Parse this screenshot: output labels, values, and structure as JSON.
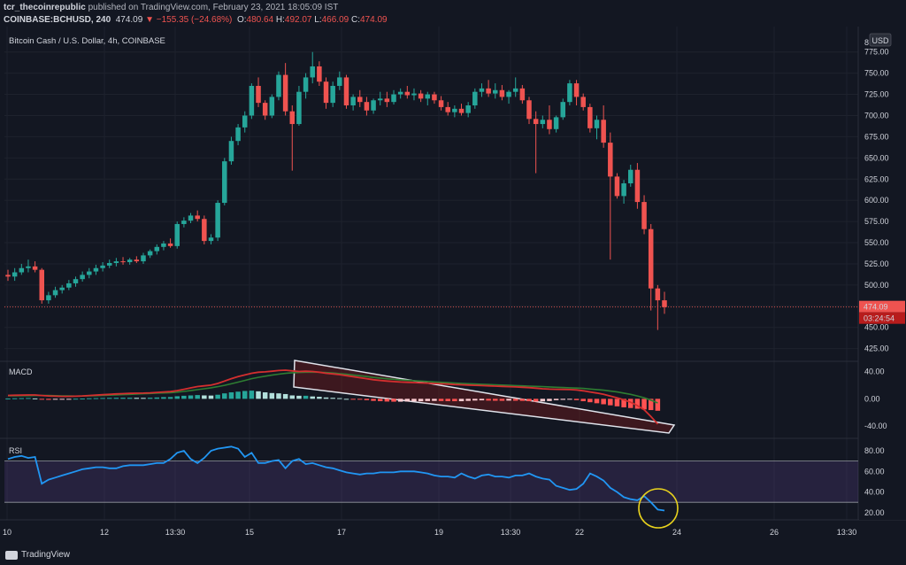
{
  "header": {
    "author": "tcr_thecoinrepublic",
    "published": "published on TradingView.com, February 23, 2021 18:05:09 IST",
    "symbol": "COINBASE:BCHUSD, 240",
    "price": "474.09",
    "change": "−155.35 (−24.68%)",
    "o_label": "O:",
    "o_val": "480.64",
    "h_label": "H:",
    "h_val": "492.07",
    "l_label": "L:",
    "l_val": "466.09",
    "c_label": "C:",
    "c_val": "474.09"
  },
  "panels": {
    "price_title": "Bitcoin Cash / U.S. Dollar, 4h, COINBASE",
    "macd_label": "MACD",
    "rsi_label": "RSI",
    "currency_badge": "USD",
    "last_price_tag": "474.09",
    "countdown_tag": "03:24:54"
  },
  "footer": {
    "brand": "TradingView"
  },
  "colors": {
    "up": "#26a69a",
    "down": "#ef5350",
    "rsi": "#2196f3",
    "macd": "#d32f2f",
    "signal": "#2e7d32",
    "rsi_band": "#7e57c2"
  },
  "chart_data": [
    {
      "type": "candlestick",
      "title": "Bitcoin Cash / U.S. Dollar, 4h, COINBASE",
      "x_ticks": [
        "10",
        "12",
        "13:30",
        "15",
        "17",
        "19",
        "13:30",
        "22",
        "24",
        "26",
        "13:30"
      ],
      "y_ticks": [
        425.0,
        450.0,
        475.0,
        500.0,
        525.0,
        550.0,
        575.0,
        600.0,
        625.0,
        650.0,
        675.0,
        700.0,
        725.0,
        750.0,
        775.0
      ],
      "ylim": [
        410,
        805
      ],
      "last_price": 474.09,
      "candles": [
        [
          512,
          518,
          505,
          510
        ],
        [
          510,
          520,
          505,
          515
        ],
        [
          515,
          525,
          512,
          520
        ],
        [
          520,
          530,
          515,
          522
        ],
        [
          522,
          528,
          515,
          518
        ],
        [
          518,
          520,
          478,
          482
        ],
        [
          482,
          492,
          478,
          488
        ],
        [
          488,
          498,
          485,
          494
        ],
        [
          494,
          500,
          490,
          497
        ],
        [
          497,
          506,
          494,
          502
        ],
        [
          502,
          510,
          498,
          507
        ],
        [
          507,
          516,
          504,
          512
        ],
        [
          512,
          520,
          508,
          516
        ],
        [
          516,
          524,
          512,
          520
        ],
        [
          520,
          527,
          516,
          523
        ],
        [
          523,
          530,
          520,
          526
        ],
        [
          526,
          532,
          522,
          528
        ],
        [
          528,
          533,
          524,
          527
        ],
        [
          527,
          532,
          524,
          530
        ],
        [
          530,
          534,
          526,
          528
        ],
        [
          528,
          538,
          525,
          535
        ],
        [
          535,
          542,
          532,
          540
        ],
        [
          540,
          548,
          536,
          545
        ],
        [
          545,
          552,
          541,
          549
        ],
        [
          549,
          555,
          544,
          546
        ],
        [
          546,
          575,
          543,
          572
        ],
        [
          572,
          580,
          568,
          576
        ],
        [
          576,
          585,
          573,
          582
        ],
        [
          582,
          588,
          575,
          578
        ],
        [
          578,
          582,
          548,
          552
        ],
        [
          552,
          560,
          548,
          556
        ],
        [
          556,
          600,
          552,
          597
        ],
        [
          597,
          650,
          594,
          646
        ],
        [
          646,
          675,
          642,
          670
        ],
        [
          670,
          690,
          665,
          686
        ],
        [
          686,
          705,
          680,
          700
        ],
        [
          700,
          738,
          696,
          735
        ],
        [
          735,
          745,
          710,
          715
        ],
        [
          715,
          718,
          695,
          700
        ],
        [
          700,
          725,
          697,
          722
        ],
        [
          722,
          752,
          718,
          748
        ],
        [
          748,
          762,
          700,
          705
        ],
        [
          705,
          712,
          635,
          690
        ],
        [
          690,
          735,
          688,
          728
        ],
        [
          728,
          750,
          720,
          745
        ],
        [
          745,
          775,
          738,
          758
        ],
        [
          758,
          764,
          735,
          740
        ],
        [
          740,
          745,
          708,
          715
        ],
        [
          715,
          740,
          710,
          735
        ],
        [
          735,
          752,
          730,
          745
        ],
        [
          745,
          748,
          708,
          712
        ],
        [
          712,
          725,
          706,
          722
        ],
        [
          722,
          730,
          710,
          716
        ],
        [
          716,
          722,
          700,
          706
        ],
        [
          706,
          720,
          702,
          718
        ],
        [
          718,
          728,
          712,
          720
        ],
        [
          720,
          728,
          710,
          716
        ],
        [
          716,
          730,
          713,
          725
        ],
        [
          725,
          732,
          720,
          728
        ],
        [
          728,
          735,
          720,
          724
        ],
        [
          724,
          732,
          718,
          726
        ],
        [
          726,
          730,
          716,
          720
        ],
        [
          720,
          728,
          712,
          725
        ],
        [
          725,
          728,
          714,
          718
        ],
        [
          718,
          723,
          706,
          710
        ],
        [
          710,
          716,
          700,
          704
        ],
        [
          704,
          712,
          698,
          708
        ],
        [
          708,
          714,
          700,
          703
        ],
        [
          703,
          716,
          698,
          712
        ],
        [
          712,
          732,
          708,
          728
        ],
        [
          728,
          738,
          722,
          732
        ],
        [
          732,
          742,
          722,
          726
        ],
        [
          726,
          738,
          720,
          730
        ],
        [
          730,
          736,
          718,
          722
        ],
        [
          722,
          730,
          714,
          728
        ],
        [
          728,
          745,
          722,
          732
        ],
        [
          732,
          736,
          714,
          718
        ],
        [
          718,
          722,
          690,
          696
        ],
        [
          696,
          705,
          632,
          690
        ],
        [
          690,
          700,
          685,
          695
        ],
        [
          695,
          712,
          678,
          684
        ],
        [
          684,
          700,
          680,
          698
        ],
        [
          698,
          720,
          695,
          716
        ],
        [
          716,
          742,
          712,
          738
        ],
        [
          738,
          742,
          712,
          722
        ],
        [
          722,
          726,
          706,
          710
        ],
        [
          710,
          714,
          680,
          685
        ],
        [
          685,
          700,
          672,
          695
        ],
        [
          695,
          712,
          662,
          668
        ],
        [
          668,
          680,
          530,
          628
        ],
        [
          628,
          632,
          602,
          605
        ],
        [
          605,
          624,
          596,
          620
        ],
        [
          620,
          642,
          616,
          636
        ],
        [
          636,
          644,
          590,
          598
        ],
        [
          598,
          606,
          560,
          566
        ],
        [
          566,
          572,
          470,
          496
        ],
        [
          496,
          500,
          447,
          482
        ],
        [
          482,
          492,
          466,
          474
        ]
      ]
    },
    {
      "type": "bar",
      "title": "MACD",
      "y_ticks": [
        40.0,
        0.0,
        -40.0
      ],
      "ylim": [
        -58,
        55
      ],
      "histogram": [
        0.5,
        0.8,
        1.0,
        1.2,
        0.6,
        -1.0,
        -1.5,
        -1.2,
        -0.8,
        -0.5,
        0.2,
        0.4,
        0.8,
        1.0,
        1.2,
        1.4,
        1.5,
        1.6,
        1.6,
        1.5,
        1.4,
        1.6,
        2.0,
        2.5,
        2.6,
        3.8,
        4.5,
        5.0,
        5.5,
        5.0,
        4.8,
        6.0,
        8.0,
        9.5,
        10.5,
        11.5,
        12.0,
        11.0,
        9.5,
        8.5,
        8.0,
        7.0,
        5.0,
        4.5,
        4.5,
        3.5,
        3.0,
        2.0,
        1.5,
        1.0,
        0.0,
        -0.5,
        -1.0,
        -2.0,
        -3.0,
        -3.5,
        -4.0,
        -4.2,
        -4.2,
        -4.0,
        -3.8,
        -3.6,
        -3.2,
        -3.0,
        -3.2,
        -3.4,
        -3.5,
        -3.5,
        -3.0,
        -2.5,
        -2.2,
        -2.6,
        -2.8,
        -2.9,
        -2.6,
        -2.8,
        -3.0,
        -3.5,
        -4.0,
        -3.8,
        -3.2,
        -2.0,
        -1.5,
        -1.2,
        -2.0,
        -3.5,
        -5.0,
        -6.5,
        -8.0,
        -9.5,
        -11.0,
        -12.5,
        -13.5,
        -14.5,
        -15.5,
        -16.5,
        -17.5
      ],
      "macd": [
        5.0,
        5.2,
        5.4,
        5.6,
        5.6,
        4.8,
        4.2,
        3.8,
        3.6,
        3.6,
        3.8,
        4.2,
        4.8,
        5.4,
        6.0,
        6.6,
        7.2,
        7.6,
        8.0,
        8.2,
        8.4,
        8.8,
        9.4,
        10.0,
        10.6,
        12.0,
        14.0,
        16.0,
        18.0,
        19.0,
        20.0,
        22.5,
        26.0,
        29.5,
        32.5,
        35.0,
        37.5,
        39.0,
        39.5,
        40.5,
        41.5,
        42.0,
        41.0,
        40.0,
        40.5,
        40.0,
        39.0,
        37.5,
        36.5,
        35.5,
        34.0,
        32.5,
        31.0,
        29.5,
        28.0,
        27.0,
        26.0,
        25.2,
        24.6,
        24.2,
        23.8,
        23.4,
        23.0,
        22.5,
        22.0,
        21.6,
        21.0,
        20.6,
        20.2,
        19.8,
        19.4,
        19.0,
        18.6,
        18.2,
        17.8,
        17.4,
        17.0,
        16.4,
        15.6,
        14.8,
        14.2,
        14.0,
        13.8,
        13.6,
        13.0,
        11.8,
        10.0,
        8.5,
        6.5,
        4.0,
        1.5,
        -1.5,
        -5.0,
        -10.0,
        -16.0,
        -26.0,
        -37.0
      ],
      "signal": [
        4.5,
        4.5,
        4.6,
        4.6,
        4.8,
        4.9,
        4.8,
        4.6,
        4.4,
        4.2,
        4.0,
        4.1,
        4.3,
        4.6,
        5.0,
        5.4,
        5.8,
        6.2,
        6.6,
        7.0,
        7.4,
        7.8,
        8.2,
        8.6,
        9.0,
        9.8,
        10.8,
        12.0,
        13.4,
        14.8,
        16.2,
        17.8,
        19.8,
        22.0,
        24.5,
        27.0,
        29.5,
        31.5,
        33.2,
        34.8,
        36.2,
        37.4,
        38.2,
        38.6,
        39.0,
        39.2,
        39.0,
        38.5,
        37.8,
        37.0,
        36.0,
        35.0,
        33.8,
        32.6,
        31.4,
        30.4,
        29.4,
        28.6,
        27.8,
        27.2,
        26.6,
        26.0,
        25.4,
        24.8,
        24.2,
        23.7,
        23.2,
        22.7,
        22.2,
        21.8,
        21.4,
        21.0,
        20.6,
        20.2,
        19.8,
        19.4,
        19.0,
        18.6,
        18.2,
        17.8,
        17.4,
        17.0,
        16.6,
        16.2,
        15.8,
        15.2,
        14.4,
        13.6,
        12.6,
        11.4,
        10.0,
        8.4,
        6.5,
        4.2,
        1.5,
        -2.0,
        -6.0
      ]
    },
    {
      "type": "line",
      "title": "RSI",
      "y_ticks": [
        80.0,
        60.0,
        40.0,
        20.0
      ],
      "ylim": [
        13,
        92
      ],
      "band": [
        30,
        70
      ],
      "values": [
        72,
        74,
        75,
        73,
        74,
        48,
        52,
        54,
        56,
        58,
        60,
        62,
        63,
        64,
        64,
        63,
        63,
        65,
        66,
        66,
        66,
        67,
        68,
        68,
        72,
        78,
        80,
        72,
        68,
        73,
        80,
        82,
        83,
        84,
        82,
        74,
        78,
        68,
        68,
        70,
        71,
        63,
        70,
        72,
        67,
        68,
        66,
        64,
        63,
        61,
        59,
        58,
        57,
        58,
        58,
        59,
        59,
        59,
        60,
        60,
        60,
        59,
        58,
        56,
        55,
        55,
        54,
        58,
        55,
        53,
        56,
        57,
        55,
        55,
        54,
        56,
        56,
        58,
        55,
        53,
        52,
        46,
        44,
        42,
        43,
        48,
        58,
        55,
        51,
        44,
        40,
        35,
        33,
        32,
        36,
        30,
        23,
        22
      ]
    }
  ]
}
